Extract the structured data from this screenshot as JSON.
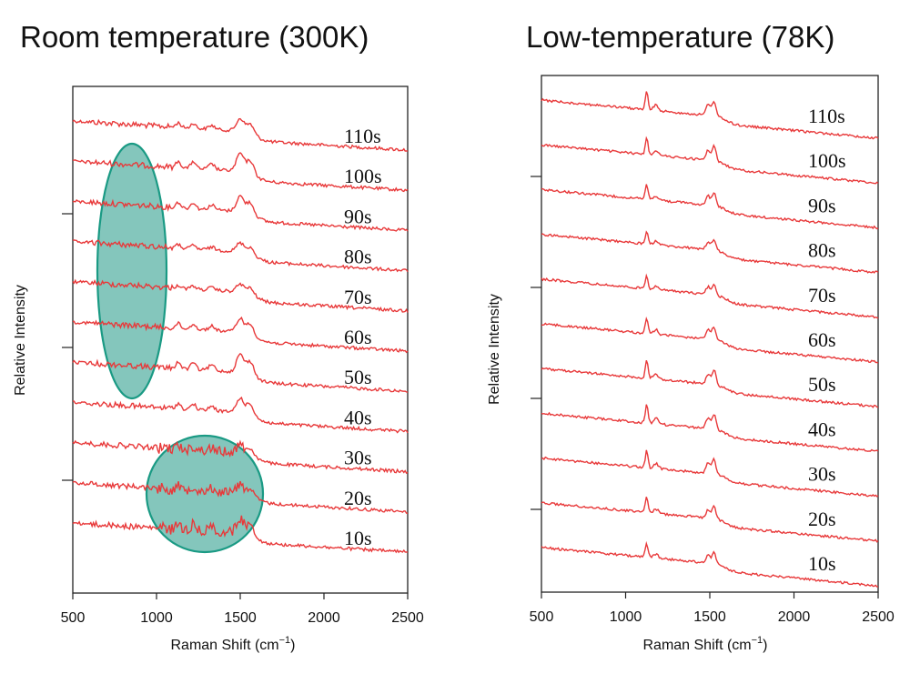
{
  "chart_data": [
    {
      "type": "line",
      "title": "Room temperature (300K)",
      "xlabel": "Raman Shift (cm",
      "xlabel_sup": "−1",
      "xlabel_close": ")",
      "ylabel": "Relative Intensity",
      "xlim": [
        500,
        2500
      ],
      "xticks": [
        "500",
        "1000",
        "1500",
        "2000",
        "2500"
      ],
      "labels": [
        "110s",
        "100s",
        "90s",
        "80s",
        "70s",
        "60s",
        "50s",
        "40s",
        "30s",
        "20s",
        "10s"
      ],
      "series_color": "#e8393a",
      "highlight_color": "#6fbcb0",
      "highlight_edge": "#1a9a84",
      "peaks_cm1": [
        1130,
        1220,
        1500,
        1560
      ],
      "annotations": [
        {
          "shape": "ellipse",
          "x_center_cm1": 850,
          "trace_span": [
            "100s",
            "50s"
          ]
        },
        {
          "shape": "circle",
          "x_center_cm1": 1300,
          "trace_span": [
            "40s",
            "10s"
          ]
        }
      ]
    },
    {
      "type": "line",
      "title": "Low-temperature (78K)",
      "xlabel": "Raman Shift (cm",
      "xlabel_sup": "−1",
      "xlabel_close": ")",
      "ylabel": "Relative Intensity",
      "xlim": [
        500,
        2500
      ],
      "xticks": [
        "500",
        "1000",
        "1500",
        "2000",
        "2500"
      ],
      "labels": [
        "110s",
        "100s",
        "90s",
        "80s",
        "70s",
        "60s",
        "50s",
        "40s",
        "30s",
        "20s",
        "10s"
      ],
      "series_color": "#e8393a",
      "peaks_cm1": [
        1125,
        1500,
        1525
      ]
    }
  ]
}
